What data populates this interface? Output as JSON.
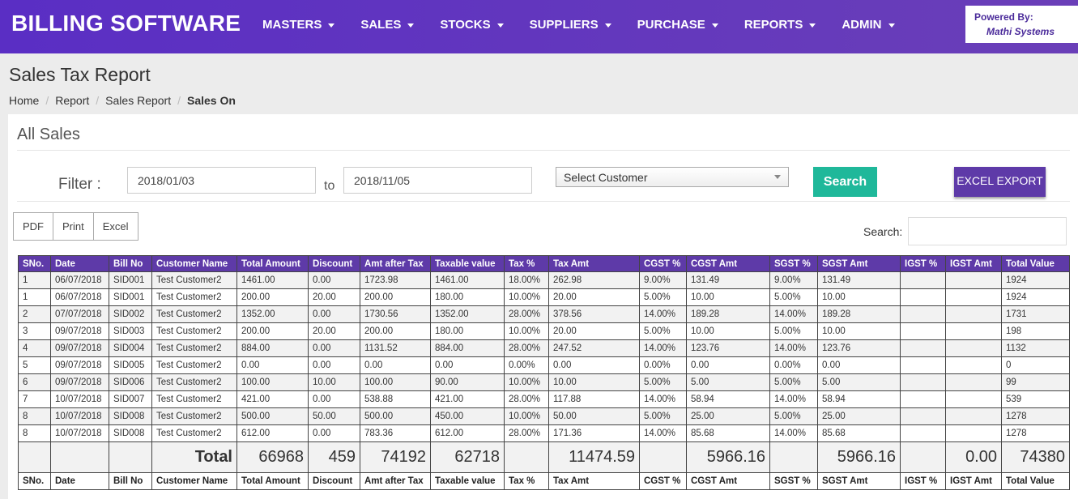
{
  "navbar": {
    "brand": "BILLING SOFTWARE",
    "menu": [
      "MASTERS",
      "SALES",
      "STOCKS",
      "SUPPLIERS",
      "PURCHASE",
      "REPORTS",
      "ADMIN"
    ],
    "powered_by": "Powered By:",
    "company": "Mathi Systems"
  },
  "header": {
    "title": "Sales Tax Report",
    "breadcrumb": [
      "Home",
      "Report",
      "Sales Report",
      "Sales On"
    ]
  },
  "panel": {
    "title": "All Sales",
    "filter_label": "Filter :",
    "from_date": "2018/01/03",
    "to_label": "to",
    "to_date": "2018/11/05",
    "customer_select": "Select Customer",
    "search_button": "Search",
    "export_button": "EXCEL EXPORT",
    "tools": [
      "PDF",
      "Print",
      "Excel"
    ],
    "search_label": "Search:"
  },
  "table": {
    "columns": [
      "SNo.",
      "Date",
      "Bill No",
      "Customer Name",
      "Total Amount",
      "Discount",
      "Amt after Tax",
      "Taxable value",
      "Tax %",
      "Tax Amt",
      "CGST %",
      "CGST Amt",
      "SGST %",
      "SGST Amt",
      "IGST %",
      "IGST Amt",
      "Total Value"
    ],
    "rows": [
      [
        "1",
        "06/07/2018",
        "SID001",
        "Test Customer2",
        "1461.00",
        "0.00",
        "1723.98",
        "1461.00",
        "18.00%",
        "262.98",
        "9.00%",
        "131.49",
        "9.00%",
        "131.49",
        null,
        null,
        "1924"
      ],
      [
        "1",
        "06/07/2018",
        "SID001",
        "Test Customer2",
        "200.00",
        "20.00",
        "200.00",
        "180.00",
        "10.00%",
        "20.00",
        "5.00%",
        "10.00",
        "5.00%",
        "10.00",
        null,
        null,
        "1924"
      ],
      [
        "2",
        "07/07/2018",
        "SID002",
        "Test Customer2",
        "1352.00",
        "0.00",
        "1730.56",
        "1352.00",
        "28.00%",
        "378.56",
        "14.00%",
        "189.28",
        "14.00%",
        "189.28",
        null,
        null,
        "1731"
      ],
      [
        "3",
        "09/07/2018",
        "SID003",
        "Test Customer2",
        "200.00",
        "20.00",
        "200.00",
        "180.00",
        "10.00%",
        "20.00",
        "5.00%",
        "10.00",
        "5.00%",
        "10.00",
        null,
        null,
        "198"
      ],
      [
        "4",
        "09/07/2018",
        "SID004",
        "Test Customer2",
        "884.00",
        "0.00",
        "1131.52",
        "884.00",
        "28.00%",
        "247.52",
        "14.00%",
        "123.76",
        "14.00%",
        "123.76",
        null,
        null,
        "1132"
      ],
      [
        "5",
        "09/07/2018",
        "SID005",
        "Test Customer2",
        "0.00",
        "0.00",
        "0.00",
        "0.00",
        "0.00%",
        "0.00",
        "0.00%",
        "0.00",
        "0.00%",
        "0.00",
        null,
        null,
        "0"
      ],
      [
        "6",
        "09/07/2018",
        "SID006",
        "Test Customer2",
        "100.00",
        "10.00",
        "100.00",
        "90.00",
        "10.00%",
        "10.00",
        "5.00%",
        "5.00",
        "5.00%",
        "5.00",
        null,
        null,
        "99"
      ],
      [
        "7",
        "10/07/2018",
        "SID007",
        "Test Customer2",
        "421.00",
        "0.00",
        "538.88",
        "421.00",
        "28.00%",
        "117.88",
        "14.00%",
        "58.94",
        "14.00%",
        "58.94",
        null,
        null,
        "539"
      ],
      [
        "8",
        "10/07/2018",
        "SID008",
        "Test Customer2",
        "500.00",
        "50.00",
        "500.00",
        "450.00",
        "10.00%",
        "50.00",
        "5.00%",
        "25.00",
        "5.00%",
        "25.00",
        null,
        null,
        "1278"
      ],
      [
        "8",
        "10/07/2018",
        "SID008",
        "Test Customer2",
        "612.00",
        "0.00",
        "783.36",
        "612.00",
        "28.00%",
        "171.36",
        "14.00%",
        "85.68",
        "14.00%",
        "85.68",
        null,
        null,
        "1278"
      ]
    ],
    "totals": [
      null,
      null,
      null,
      "Total",
      "66968",
      "459",
      "74192",
      "62718",
      null,
      "11474.59",
      null,
      "5966.16",
      null,
      "5966.16",
      null,
      "0.00",
      "74380"
    ]
  }
}
